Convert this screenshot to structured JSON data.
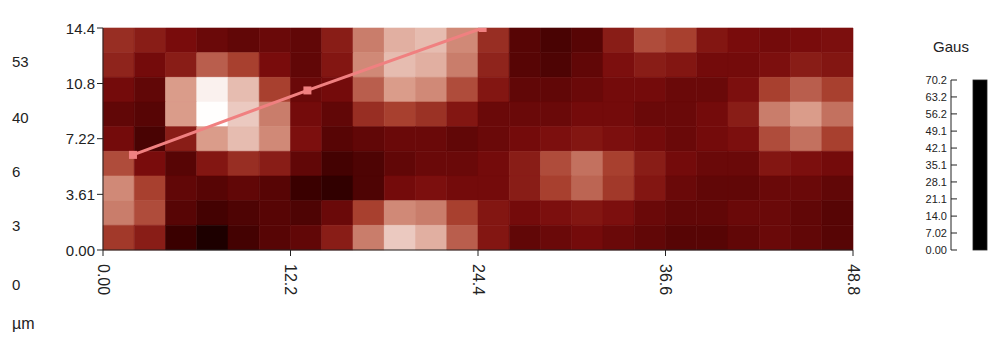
{
  "chart_data": {
    "type": "heatmap",
    "x_label": "µm",
    "xlim": [
      0,
      48.8
    ],
    "ylim": [
      0,
      14.4
    ],
    "xticks": [
      {
        "value": 0,
        "label": "0.00"
      },
      12.2,
      24.4,
      36.6,
      48.8
    ],
    "yticks": [
      {
        "value": 0,
        "label": "0.00"
      },
      3.61,
      7.22,
      10.8,
      14.4
    ],
    "annotations": [
      "53",
      "40",
      "6",
      "3",
      "0"
    ],
    "cells": [
      [
        35,
        30,
        25,
        22,
        20,
        22,
        20,
        30,
        50,
        58,
        60,
        52,
        35,
        18,
        15,
        18,
        30,
        42,
        40,
        28,
        25,
        24,
        25,
        26
      ],
      [
        32,
        24,
        30,
        45,
        40,
        25,
        20,
        28,
        52,
        60,
        58,
        50,
        32,
        18,
        16,
        20,
        26,
        30,
        28,
        24,
        24,
        26,
        30,
        28
      ],
      [
        24,
        20,
        55,
        68,
        60,
        40,
        22,
        24,
        45,
        55,
        52,
        42,
        28,
        20,
        20,
        22,
        24,
        24,
        22,
        22,
        26,
        40,
        45,
        40
      ],
      [
        20,
        18,
        55,
        70,
        62,
        50,
        24,
        20,
        35,
        40,
        36,
        28,
        22,
        22,
        22,
        24,
        24,
        22,
        22,
        24,
        30,
        50,
        55,
        48
      ],
      [
        24,
        15,
        30,
        55,
        60,
        52,
        26,
        18,
        20,
        22,
        22,
        20,
        22,
        24,
        26,
        28,
        26,
        24,
        22,
        24,
        26,
        42,
        48,
        40
      ],
      [
        42,
        25,
        18,
        28,
        35,
        30,
        20,
        14,
        16,
        20,
        22,
        22,
        24,
        30,
        42,
        48,
        40,
        30,
        24,
        22,
        22,
        28,
        26,
        24
      ],
      [
        52,
        40,
        20,
        18,
        20,
        18,
        12,
        10,
        16,
        24,
        26,
        24,
        24,
        30,
        40,
        46,
        38,
        28,
        22,
        20,
        20,
        22,
        22,
        20
      ],
      [
        50,
        42,
        18,
        14,
        16,
        18,
        16,
        22,
        40,
        52,
        50,
        40,
        28,
        24,
        26,
        28,
        26,
        22,
        20,
        20,
        22,
        22,
        20,
        18
      ],
      [
        38,
        30,
        12,
        6,
        14,
        18,
        20,
        30,
        50,
        62,
        58,
        45,
        28,
        20,
        22,
        24,
        22,
        20,
        18,
        18,
        20,
        22,
        20,
        18
      ]
    ],
    "colorbar": {
      "title": "Gaus",
      "range": [
        0,
        70.2
      ],
      "ticks": [
        {
          "value": 0,
          "label": "0.00"
        },
        7.02,
        {
          "value": 14,
          "label": "14.0"
        },
        21.1,
        28.1,
        35.1,
        42.1,
        49.1,
        56.2,
        63.2,
        70.2
      ]
    },
    "profile": {
      "x": [
        1.95,
        13.3,
        24.7
      ],
      "y": [
        6.17,
        10.35,
        14.4
      ],
      "color": "#f08080",
      "marker": "square"
    }
  }
}
